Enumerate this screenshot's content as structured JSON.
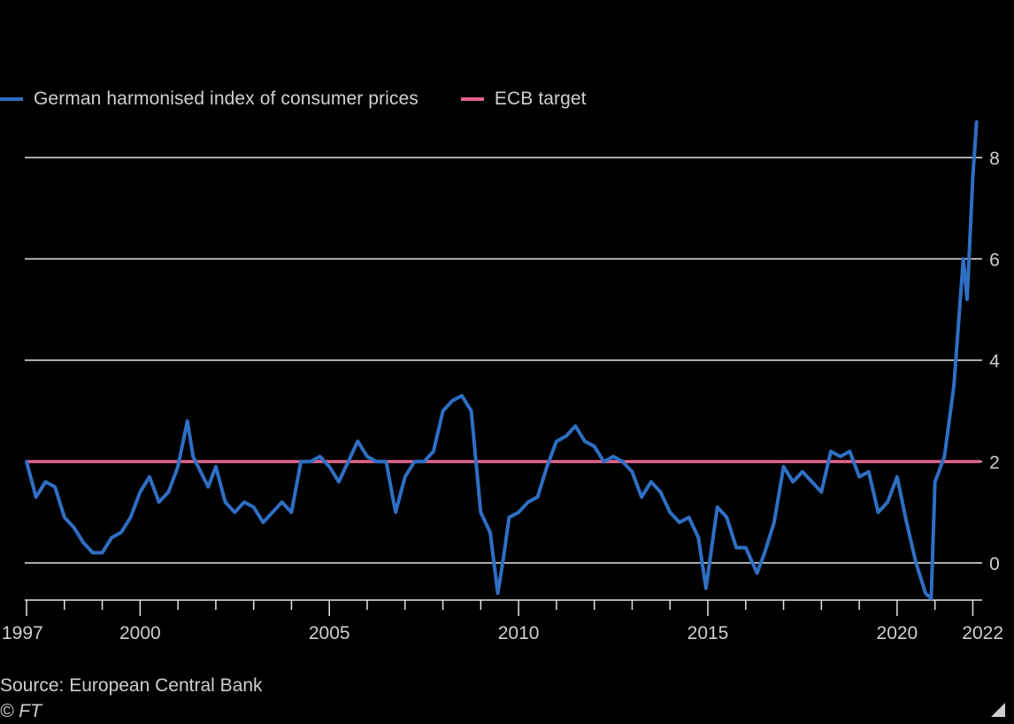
{
  "legend": {
    "series_label": "German harmonised index of consumer prices",
    "target_label": "ECB target"
  },
  "source": "Source: European Central Bank",
  "credit": "© FT",
  "colors": {
    "series": "#2f6fc4",
    "target": "#e3648c",
    "grid": "#e6e6e6",
    "text": "#cfcfcf"
  },
  "chart_data": {
    "type": "line",
    "title": "",
    "xlabel": "",
    "ylabel": "",
    "xlim": [
      1997.0,
      2022.2
    ],
    "ylim": [
      -0.7,
      8.7
    ],
    "y_ticks": [
      0,
      2,
      4,
      6,
      8
    ],
    "x_tick_labels": [
      "1997",
      "2000",
      "2005",
      "2010",
      "2015",
      "2020",
      "2022"
    ],
    "x_tick_values": [
      1997,
      2000,
      2005,
      2010,
      2015,
      2020,
      2022
    ],
    "grid": "horizontal",
    "legend_position": "top-left",
    "series": [
      {
        "name": "German harmonised index of consumer prices",
        "x": [
          1997.0,
          1997.25,
          1997.5,
          1997.75,
          1998.0,
          1998.25,
          1998.5,
          1998.75,
          1999.0,
          1999.25,
          1999.5,
          1999.75,
          2000.0,
          2000.25,
          2000.5,
          2000.75,
          2001.0,
          2001.25,
          2001.4,
          2001.6,
          2001.8,
          2002.0,
          2002.25,
          2002.5,
          2002.75,
          2003.0,
          2003.25,
          2003.5,
          2003.75,
          2004.0,
          2004.25,
          2004.5,
          2004.75,
          2005.0,
          2005.25,
          2005.5,
          2005.75,
          2006.0,
          2006.25,
          2006.5,
          2006.75,
          2007.0,
          2007.25,
          2007.5,
          2007.75,
          2008.0,
          2008.25,
          2008.5,
          2008.75,
          2009.0,
          2009.25,
          2009.45,
          2009.6,
          2009.75,
          2010.0,
          2010.25,
          2010.5,
          2010.75,
          2011.0,
          2011.25,
          2011.5,
          2011.75,
          2012.0,
          2012.25,
          2012.5,
          2012.75,
          2013.0,
          2013.25,
          2013.5,
          2013.75,
          2014.0,
          2014.25,
          2014.5,
          2014.75,
          2014.95,
          2015.25,
          2015.5,
          2015.75,
          2016.0,
          2016.3,
          2016.5,
          2016.75,
          2017.0,
          2017.25,
          2017.5,
          2017.75,
          2018.0,
          2018.25,
          2018.5,
          2018.75,
          2019.0,
          2019.25,
          2019.5,
          2019.75,
          2020.0,
          2020.25,
          2020.5,
          2020.75,
          2020.9,
          2021.0,
          2021.25,
          2021.5,
          2021.75,
          2021.85,
          2022.0,
          2022.1
        ],
        "values": [
          2.0,
          1.3,
          1.6,
          1.5,
          0.9,
          0.7,
          0.4,
          0.2,
          0.2,
          0.5,
          0.6,
          0.9,
          1.4,
          1.7,
          1.2,
          1.4,
          1.9,
          2.8,
          2.1,
          1.8,
          1.5,
          1.9,
          1.2,
          1.0,
          1.2,
          1.1,
          0.8,
          1.0,
          1.2,
          1.0,
          2.0,
          2.0,
          2.1,
          1.9,
          1.6,
          2.0,
          2.4,
          2.1,
          2.0,
          2.0,
          1.0,
          1.7,
          2.0,
          2.0,
          2.2,
          3.0,
          3.2,
          3.3,
          3.0,
          1.0,
          0.6,
          -0.6,
          0.1,
          0.9,
          1.0,
          1.2,
          1.3,
          1.9,
          2.4,
          2.5,
          2.7,
          2.4,
          2.3,
          2.0,
          2.1,
          2.0,
          1.8,
          1.3,
          1.6,
          1.4,
          1.0,
          0.8,
          0.9,
          0.5,
          -0.5,
          1.1,
          0.9,
          0.3,
          0.3,
          -0.2,
          0.2,
          0.8,
          1.9,
          1.6,
          1.8,
          1.6,
          1.4,
          2.2,
          2.1,
          2.2,
          1.7,
          1.8,
          1.0,
          1.2,
          1.7,
          0.8,
          0.0,
          -0.6,
          -0.7,
          1.6,
          2.1,
          3.5,
          6.0,
          5.2,
          7.6,
          8.7
        ]
      },
      {
        "name": "ECB target",
        "x": [
          1997.0,
          2022.2
        ],
        "values": [
          2,
          2
        ]
      }
    ]
  }
}
